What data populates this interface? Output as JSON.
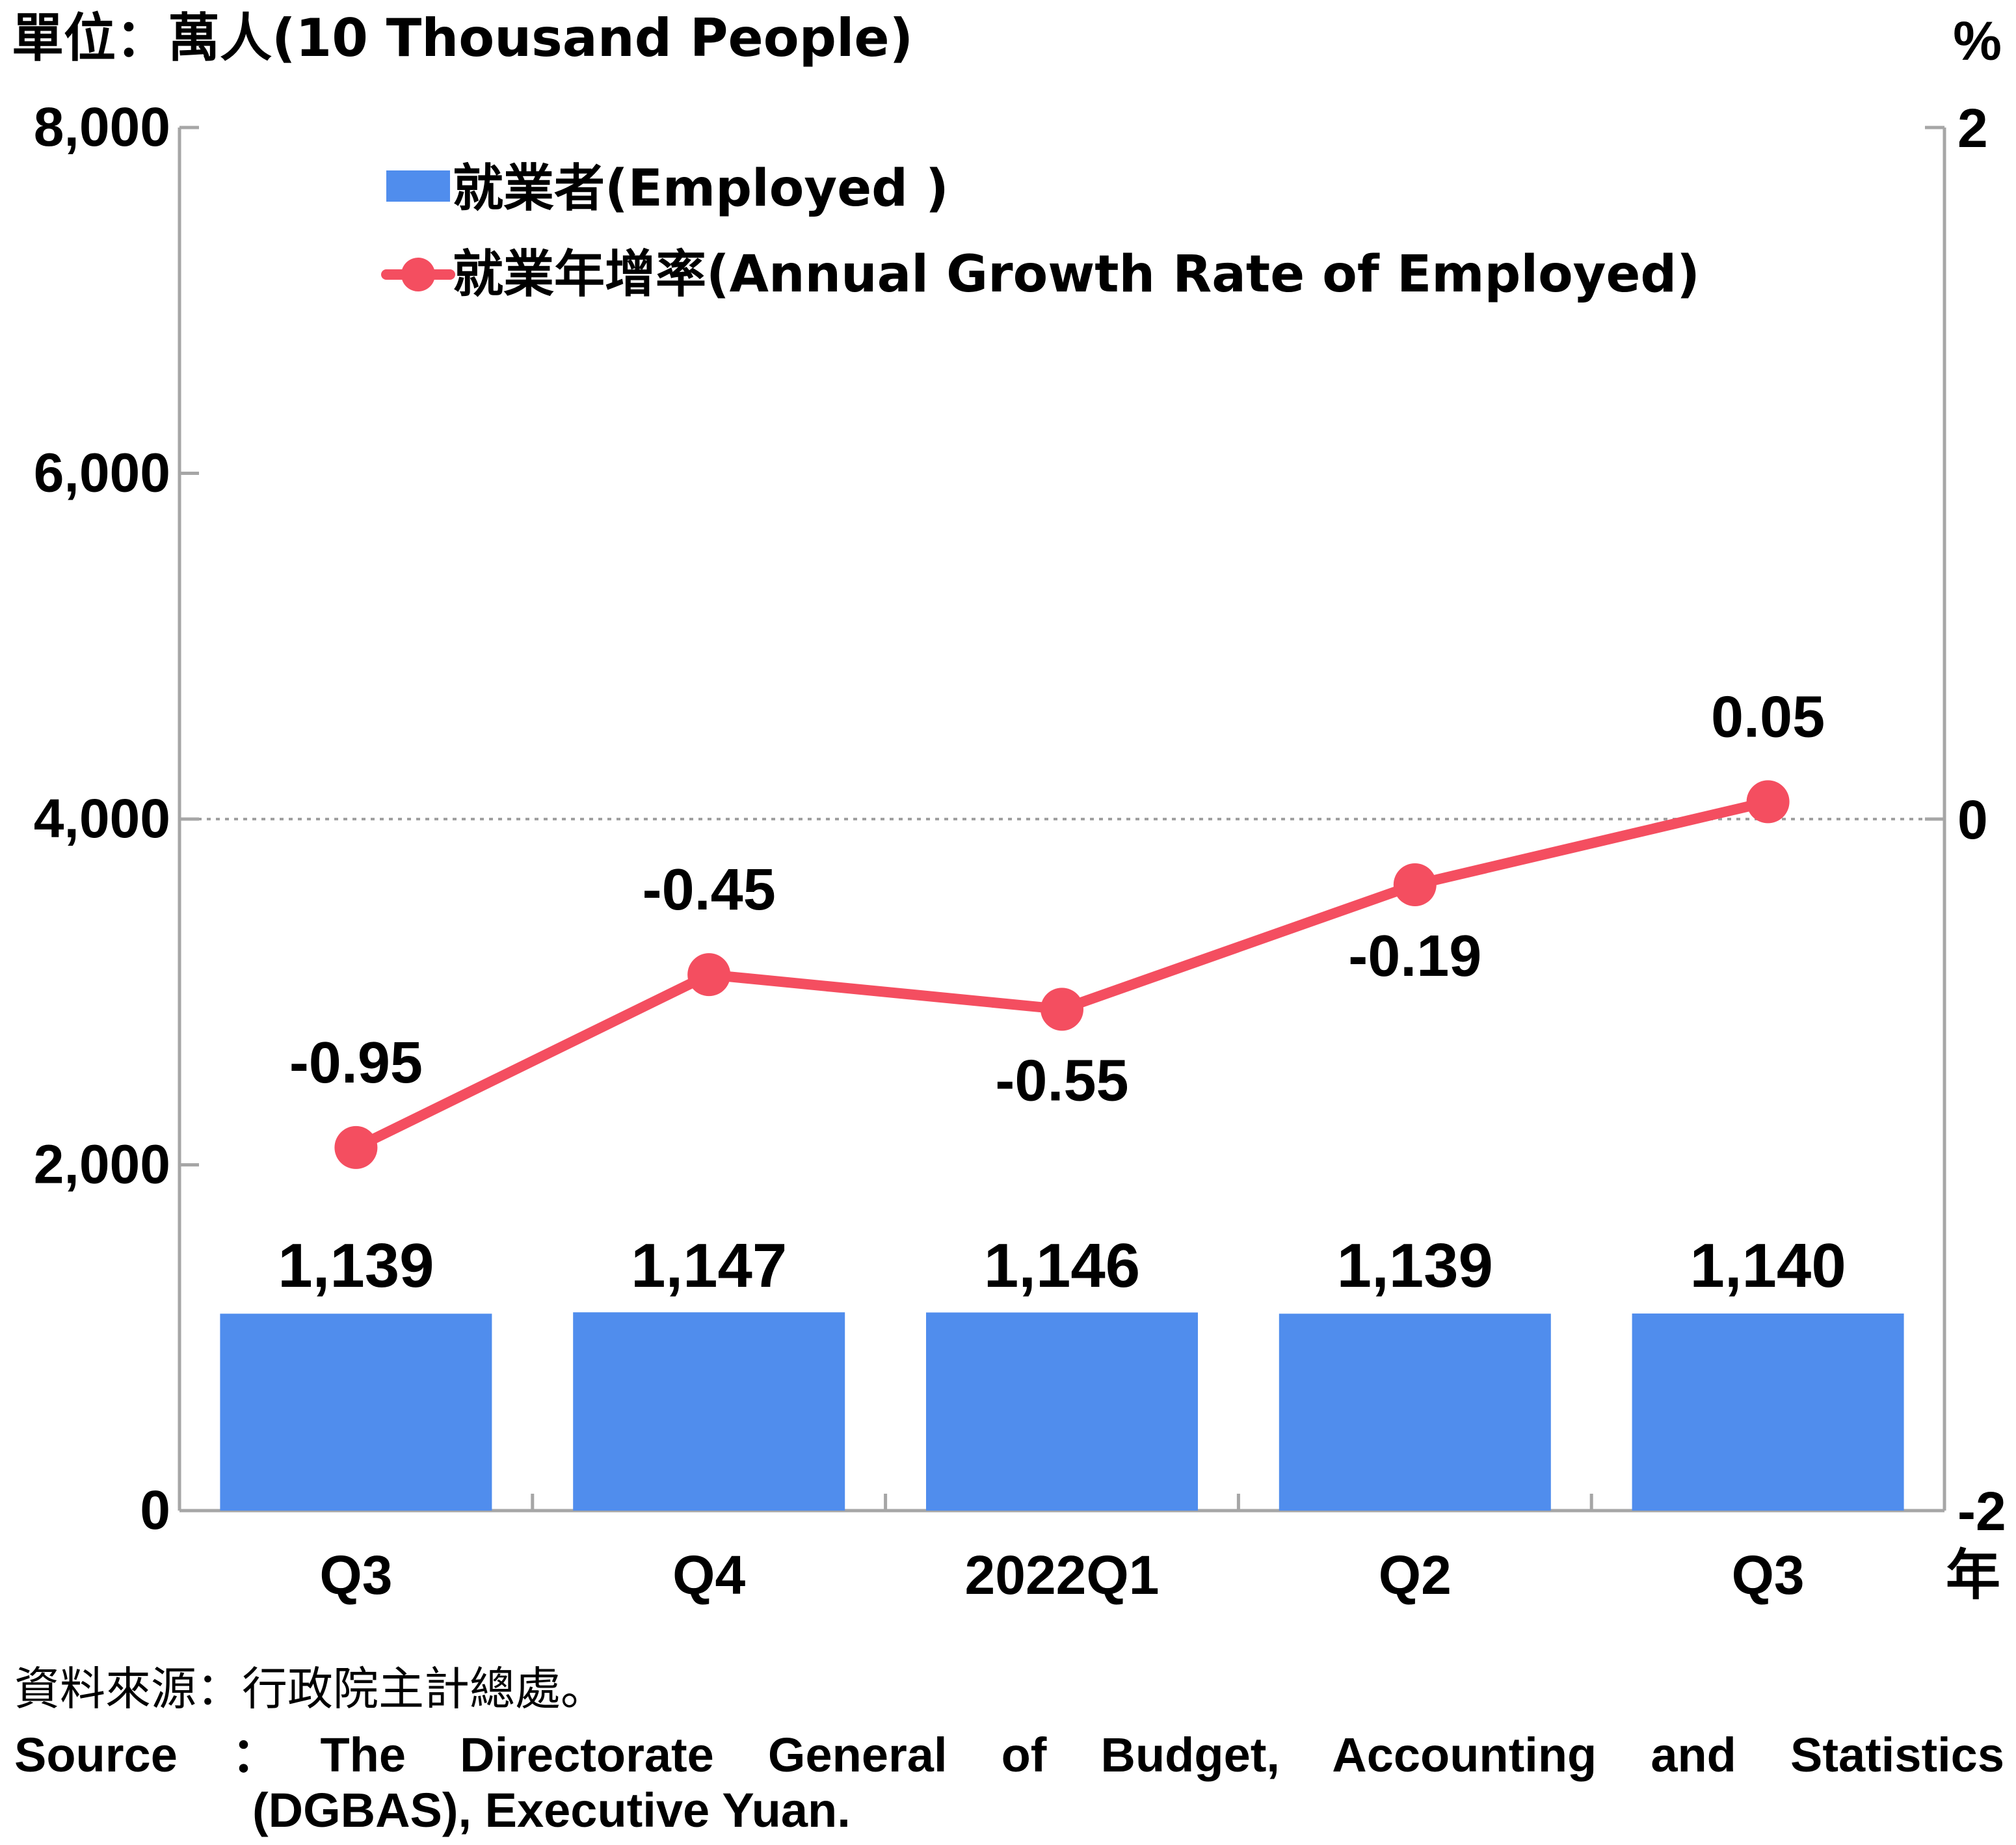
{
  "chart_data": {
    "type": "bar+line",
    "categories": [
      "Q3",
      "Q4",
      "2022Q1",
      "Q2",
      "Q3"
    ],
    "x_axis_suffix": "年",
    "left_axis": {
      "unit_label": "單位：萬人(10 Thousand People)",
      "ylim": [
        0,
        8000
      ],
      "ticks": [
        0,
        2000,
        4000,
        6000,
        8000
      ],
      "tick_labels": [
        "0",
        "2,000",
        "4,000",
        "6,000",
        "8,000"
      ]
    },
    "right_axis": {
      "unit_label": "%",
      "ylim": [
        -2,
        2
      ],
      "ticks": [
        -2,
        0,
        2
      ],
      "tick_labels": [
        "-2",
        "0",
        "2"
      ]
    },
    "series": [
      {
        "name": "就業者(Employed )",
        "type": "bar",
        "axis": "left",
        "color": "#508ded",
        "values": [
          1139,
          1147,
          1146,
          1139,
          1140
        ],
        "value_labels": [
          "1,139",
          "1,147",
          "1,146",
          "1,139",
          "1,140"
        ]
      },
      {
        "name": "就業年增率(Annual Growth Rate of Employed)",
        "type": "line",
        "axis": "right",
        "color": "#f44e60",
        "values": [
          -0.95,
          -0.45,
          -0.55,
          -0.19,
          0.05
        ],
        "value_labels": [
          "-0.95",
          "-0.45",
          "-0.55",
          "-0.19",
          "0.05"
        ]
      }
    ],
    "zero_reference_line": "dotted grey at right-axis 0",
    "legend_position": "top-left",
    "grid": false
  },
  "source": {
    "zh": "資料來源：行政院主計總處。",
    "en_line1": "Source ：The Directorate General of Budget, Accounting and Statistics",
    "en_line2": "(DGBAS), Executive Yuan."
  }
}
